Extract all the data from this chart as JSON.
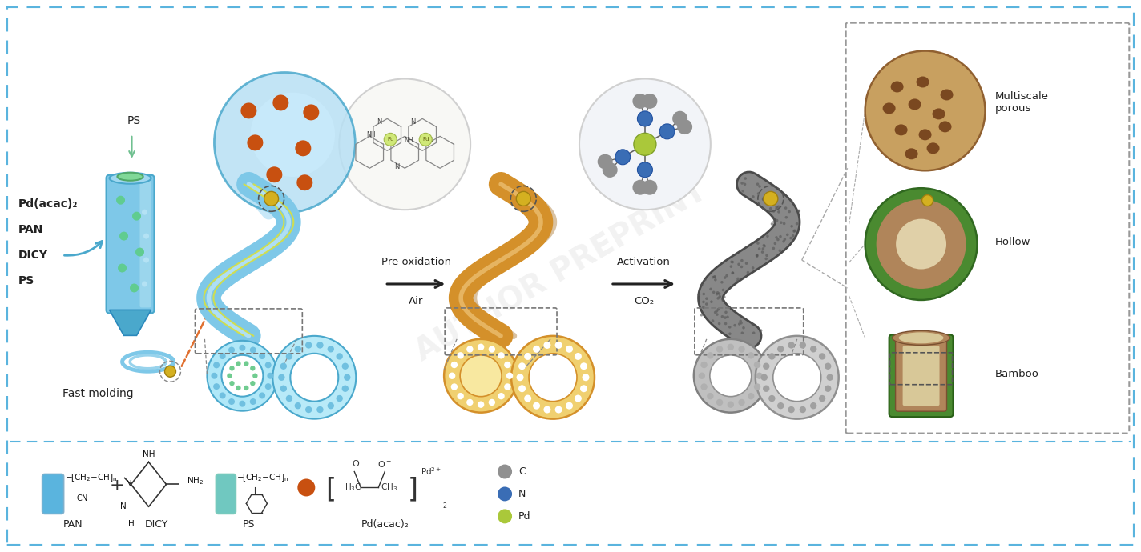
{
  "background_color": "#ffffff",
  "fig_width": 14.24,
  "fig_height": 6.9,
  "dpi": 100,
  "colors": {
    "border_dashed": "#5ab4de",
    "light_blue": "#7ec8e8",
    "medium_blue": "#4aa8cc",
    "deep_blue": "#2a88bb",
    "orange_fiber": "#d4902a",
    "dark_gray_fiber": "#606060",
    "orange_dots": "#c85010",
    "gray_atom": "#909090",
    "blue_atom": "#3a6db5",
    "green_atom": "#aac83a",
    "gold_dot": "#d4b020",
    "bamboo_green": "#4a8a30",
    "bamboo_brown": "#b0855a",
    "bamboo_inner": "#d8c090",
    "label_color": "#222222",
    "pan_rect": "#5ab4de",
    "ps_rect": "#70c8c0",
    "sep_color": "#5ab4de"
  },
  "texts": {
    "ps_top": "PS",
    "pd_acac": "Pd(acac)₂",
    "pan": "PAN",
    "dicy": "DICY",
    "ps": "PS",
    "fast_molding": "Fast molding",
    "pre_oxidation": "Pre oxidation",
    "air": "Air",
    "activation": "Activation",
    "co2": "CO₂",
    "multiscale_porous": "Multiscale\nporous",
    "hollow": "Hollow",
    "bamboo": "Bamboo",
    "pan_leg": "PAN",
    "dicy_leg": "DICY",
    "ps_leg": "PS",
    "pd_leg": "Pd(acac)₂",
    "c_leg": "C",
    "n_leg": "N",
    "pd_atom_leg": "Pd"
  }
}
